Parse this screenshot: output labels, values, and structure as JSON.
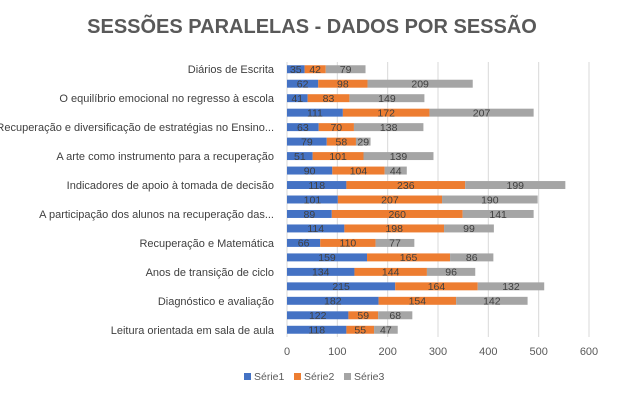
{
  "chart_data": {
    "type": "bar",
    "orientation": "horizontal",
    "stacked": true,
    "title": "SESSÕES PARALELAS - DADOS POR SESSÃO",
    "xlabel": "",
    "ylabel": "",
    "xlim": [
      0,
      600
    ],
    "x_ticks": [
      "0",
      "100",
      "200",
      "300",
      "400",
      "500",
      "600"
    ],
    "grid": "vertical",
    "legend_position": "bottom",
    "colors": [
      "#4472C4",
      "#ED7D31",
      "#A5A5A5"
    ],
    "categories": [
      "Leitura orientada em sala de aula",
      "",
      "Diagnóstico e avaliação",
      "",
      "Anos de transição de ciclo",
      "",
      "Recuperação e Matemática",
      "",
      "A participação dos alunos na recuperação das...",
      "",
      "Indicadores de apoio à tomada de decisão",
      "",
      "A arte como instrumento para a recuperação",
      "",
      "Recuperação e diversificação de estratégias no Ensino...",
      "",
      "O equilíbrio emocional no regresso à escola",
      "",
      "Diários de Escrita"
    ],
    "series": [
      {
        "name": "Série1",
        "values": [
          118,
          122,
          182,
          215,
          134,
          159,
          66,
          114,
          89,
          101,
          118,
          90,
          51,
          79,
          63,
          111,
          41,
          62,
          35
        ]
      },
      {
        "name": "Série2",
        "values": [
          55,
          59,
          154,
          164,
          144,
          165,
          110,
          198,
          260,
          207,
          236,
          104,
          101,
          58,
          70,
          172,
          83,
          98,
          42
        ]
      },
      {
        "name": "Série3",
        "values": [
          47,
          68,
          142,
          132,
          96,
          86,
          77,
          99,
          141,
          190,
          199,
          44,
          139,
          29,
          138,
          207,
          149,
          209,
          79
        ]
      }
    ]
  }
}
